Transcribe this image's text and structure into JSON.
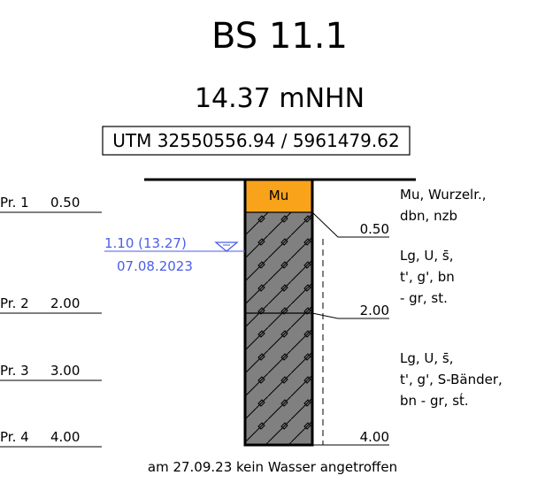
{
  "header": {
    "title": "BS 11.1",
    "elevation": "14.37 mNHN",
    "coordinates": "UTM 32550556.94 / 5961479.62"
  },
  "layers": [
    {
      "code": "Mu",
      "depth": "0.50",
      "description": [
        "Mu, Wurzelr.,",
        "dbn, nzb"
      ]
    },
    {
      "depth": "2.00",
      "description": [
        "Lg, U, s̄,",
        "t', g', bn",
        "- gr, st."
      ]
    },
    {
      "depth": "4.00",
      "description": [
        "Lg, U, s̄,",
        "t', g', S-Bänder,",
        "bn - gr, st́."
      ]
    }
  ],
  "samples": [
    {
      "name": "Pr. 1",
      "depth": "0.50"
    },
    {
      "name": "Pr. 2",
      "depth": "2.00"
    },
    {
      "name": "Pr. 3",
      "depth": "3.00"
    },
    {
      "name": "Pr. 4",
      "depth": "4.00"
    }
  ],
  "water": {
    "level": "1.10 (13.27)",
    "date": "07.08.2023"
  },
  "note": "am 27.09.23 kein Wasser angetroffen"
}
